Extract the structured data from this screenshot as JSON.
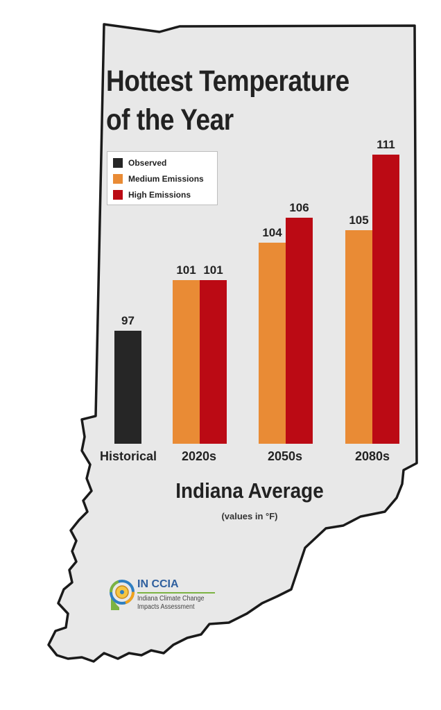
{
  "colors": {
    "state_fill": "#e8e8e8",
    "state_outline": "#1a1a1a",
    "observed": "#262626",
    "medium": "#e98b35",
    "high": "#bb0a14"
  },
  "logo": {
    "title": "IN CCIA",
    "line1": "Indiana Climate Change",
    "line2": "Impacts Assessment",
    "icon": "indiana-ccia-emblem-icon"
  },
  "chart_data": {
    "type": "bar",
    "title_lines": [
      "Hottest Temperature",
      "of the Year"
    ],
    "xlabel": "Indiana Average",
    "note": "(values in °F)",
    "categories": [
      "Historical",
      "2020s",
      "2050s",
      "2080s"
    ],
    "series": [
      {
        "name": "Observed",
        "values": [
          97,
          null,
          null,
          null
        ]
      },
      {
        "name": "Medium Emissions",
        "values": [
          null,
          101,
          104,
          105
        ]
      },
      {
        "name": "High Emissions",
        "values": [
          null,
          101,
          106,
          111
        ]
      }
    ],
    "data_labels": true,
    "legend_position": "top-left",
    "grid": false,
    "ylim": [
      88,
      112
    ]
  }
}
